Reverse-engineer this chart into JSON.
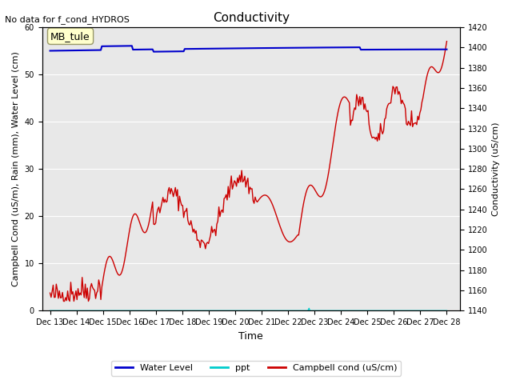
{
  "title": "Conductivity",
  "top_left_text": "No data for f_cond_HYDROS",
  "xlabel": "Time",
  "ylabel_left": "Campbell Cond (uS/m), Rain (mm), Water Level (cm)",
  "ylabel_right": "Conductivity (uS/cm)",
  "ylim_left": [
    0,
    60
  ],
  "ylim_right": [
    1140,
    1420
  ],
  "bg_color": "#e8e8e8",
  "annotation_box": "MB_tule",
  "annotation_box_color": "#ffffcc",
  "annotation_box_border": "#999966",
  "x_ticks": [
    "Dec 13",
    "Dec 14",
    "Dec 15",
    "Dec 16",
    "Dec 17",
    "Dec 18",
    "Dec 19",
    "Dec 20",
    "Dec 21",
    "Dec 22",
    "Dec 23",
    "Dec 24",
    "Dec 25",
    "Dec 26",
    "Dec 27",
    "Dec 28"
  ],
  "water_level_color": "#0000cc",
  "ppt_color": "#00cccc",
  "campbell_color": "#cc0000",
  "legend_items": [
    "Water Level",
    "ppt",
    "Campbell cond (uS/cm)"
  ],
  "legend_colors": [
    "#0000cc",
    "#00cccc",
    "#cc0000"
  ]
}
